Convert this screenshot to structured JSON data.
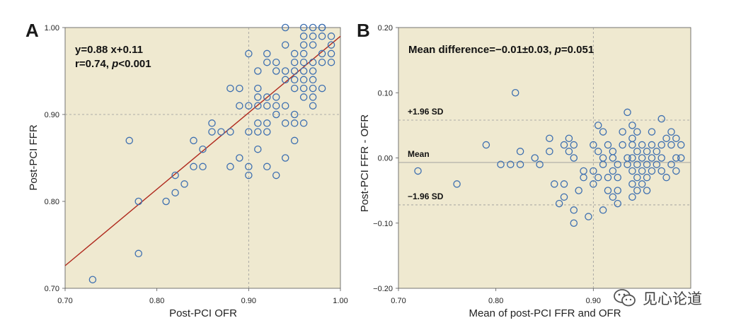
{
  "colors": {
    "plot_background": "#efe9d0",
    "marker_stroke": "#3d6fb0",
    "regression_line": "#b02a1e",
    "reference_line": "#999999"
  },
  "watermark": {
    "text": "见心论道",
    "icon": "wechat-icon"
  },
  "chart_data": [
    {
      "panel": "A",
      "type": "scatter",
      "title": "",
      "xlabel": "Post-PCI OFR",
      "ylabel": "Post-PCI FFR",
      "xlim": [
        0.7,
        1.0
      ],
      "ylim": [
        0.7,
        1.0
      ],
      "xticks": [
        0.7,
        0.8,
        0.9,
        1.0
      ],
      "yticks": [
        0.7,
        0.8,
        0.9,
        1.0
      ],
      "xtick_labels": [
        "0.70",
        "0.80",
        "0.90",
        "1.00"
      ],
      "ytick_labels": [
        "0.70",
        "0.80",
        "0.90",
        "1.00"
      ],
      "reference_lines": {
        "x": 0.9,
        "y": 0.9
      },
      "annotation": {
        "line1": "y=0.88 x+0.11",
        "line2_prefix": "r=0.74, ",
        "line2_italic": "p",
        "line2_suffix": "<0.001"
      },
      "regression": {
        "slope": 0.88,
        "intercept": 0.11
      },
      "points": [
        [
          0.73,
          0.71
        ],
        [
          0.77,
          0.87
        ],
        [
          0.78,
          0.8
        ],
        [
          0.78,
          0.74
        ],
        [
          0.81,
          0.8
        ],
        [
          0.82,
          0.83
        ],
        [
          0.82,
          0.81
        ],
        [
          0.83,
          0.82
        ],
        [
          0.84,
          0.87
        ],
        [
          0.84,
          0.84
        ],
        [
          0.85,
          0.86
        ],
        [
          0.85,
          0.84
        ],
        [
          0.86,
          0.89
        ],
        [
          0.86,
          0.88
        ],
        [
          0.87,
          0.88
        ],
        [
          0.88,
          0.93
        ],
        [
          0.88,
          0.88
        ],
        [
          0.88,
          0.84
        ],
        [
          0.89,
          0.93
        ],
        [
          0.89,
          0.91
        ],
        [
          0.89,
          0.85
        ],
        [
          0.9,
          0.97
        ],
        [
          0.9,
          0.91
        ],
        [
          0.9,
          0.88
        ],
        [
          0.9,
          0.84
        ],
        [
          0.9,
          0.83
        ],
        [
          0.91,
          0.95
        ],
        [
          0.91,
          0.93
        ],
        [
          0.91,
          0.92
        ],
        [
          0.91,
          0.91
        ],
        [
          0.91,
          0.89
        ],
        [
          0.91,
          0.88
        ],
        [
          0.91,
          0.86
        ],
        [
          0.92,
          0.97
        ],
        [
          0.92,
          0.96
        ],
        [
          0.92,
          0.92
        ],
        [
          0.92,
          0.91
        ],
        [
          0.92,
          0.89
        ],
        [
          0.92,
          0.88
        ],
        [
          0.92,
          0.84
        ],
        [
          0.93,
          0.96
        ],
        [
          0.93,
          0.95
        ],
        [
          0.93,
          0.92
        ],
        [
          0.93,
          0.91
        ],
        [
          0.93,
          0.9
        ],
        [
          0.93,
          0.83
        ],
        [
          0.94,
          1.0
        ],
        [
          0.94,
          0.98
        ],
        [
          0.94,
          0.95
        ],
        [
          0.94,
          0.94
        ],
        [
          0.94,
          0.91
        ],
        [
          0.94,
          0.89
        ],
        [
          0.94,
          0.85
        ],
        [
          0.95,
          0.97
        ],
        [
          0.95,
          0.96
        ],
        [
          0.95,
          0.95
        ],
        [
          0.95,
          0.94
        ],
        [
          0.95,
          0.93
        ],
        [
          0.95,
          0.9
        ],
        [
          0.95,
          0.89
        ],
        [
          0.95,
          0.87
        ],
        [
          0.96,
          0.96
        ],
        [
          0.96,
          0.95
        ],
        [
          0.96,
          0.94
        ],
        [
          0.96,
          0.93
        ],
        [
          0.96,
          0.92
        ],
        [
          0.96,
          0.89
        ],
        [
          0.97,
          1.0
        ],
        [
          0.97,
          0.99
        ],
        [
          0.97,
          0.98
        ],
        [
          0.97,
          0.96
        ],
        [
          0.97,
          0.95
        ],
        [
          0.97,
          0.94
        ],
        [
          0.97,
          0.93
        ],
        [
          0.97,
          0.92
        ],
        [
          0.97,
          0.91
        ],
        [
          0.98,
          1.0
        ],
        [
          0.98,
          0.99
        ],
        [
          0.98,
          0.97
        ],
        [
          0.98,
          0.96
        ],
        [
          0.98,
          0.93
        ],
        [
          0.99,
          0.99
        ],
        [
          0.99,
          0.98
        ],
        [
          0.99,
          0.97
        ],
        [
          0.99,
          0.96
        ],
        [
          0.96,
          1.0
        ],
        [
          0.96,
          0.99
        ],
        [
          0.96,
          0.98
        ],
        [
          0.96,
          0.97
        ],
        [
          0.98,
          1.0
        ]
      ]
    },
    {
      "panel": "B",
      "type": "scatter",
      "title": "",
      "xlabel": "Mean of post-PCI FFR and OFR",
      "ylabel": "Post-PCI FFR - OFR",
      "xlim": [
        0.7,
        1.0
      ],
      "ylim": [
        -0.2,
        0.2
      ],
      "xticks": [
        0.7,
        0.8,
        0.9
      ],
      "yticks": [
        0.2,
        0.1,
        0.0,
        -0.1,
        -0.2
      ],
      "xtick_labels": [
        "0.70",
        "0.80",
        "0.90"
      ],
      "ytick_labels": [
        "0.20",
        "0.10",
        "0.00",
        "−0.10",
        "−0.20"
      ],
      "annotation": {
        "prefix": "Mean difference=−0.01±0.03, ",
        "italic": "p",
        "suffix": "=0.051"
      },
      "mean_diff": -0.007,
      "upper_loa": 0.058,
      "lower_loa": -0.072,
      "line_labels": {
        "upper": "+1.96 SD",
        "mean": "Mean",
        "lower": "−1.96 SD"
      },
      "points": [
        [
          0.72,
          -0.02
        ],
        [
          0.76,
          -0.04
        ],
        [
          0.79,
          0.02
        ],
        [
          0.805,
          -0.01
        ],
        [
          0.815,
          -0.01
        ],
        [
          0.82,
          0.1
        ],
        [
          0.825,
          0.01
        ],
        [
          0.825,
          -0.01
        ],
        [
          0.84,
          0.0
        ],
        [
          0.845,
          -0.01
        ],
        [
          0.855,
          0.03
        ],
        [
          0.855,
          0.01
        ],
        [
          0.86,
          -0.04
        ],
        [
          0.865,
          -0.07
        ],
        [
          0.87,
          0.02
        ],
        [
          0.87,
          -0.04
        ],
        [
          0.87,
          -0.06
        ],
        [
          0.875,
          0.03
        ],
        [
          0.875,
          0.01
        ],
        [
          0.88,
          0.02
        ],
        [
          0.88,
          0.0
        ],
        [
          0.88,
          -0.08
        ],
        [
          0.88,
          -0.1
        ],
        [
          0.885,
          -0.05
        ],
        [
          0.89,
          -0.02
        ],
        [
          0.89,
          -0.03
        ],
        [
          0.895,
          -0.09
        ],
        [
          0.9,
          0.02
        ],
        [
          0.9,
          -0.02
        ],
        [
          0.9,
          -0.04
        ],
        [
          0.905,
          0.05
        ],
        [
          0.905,
          0.01
        ],
        [
          0.905,
          -0.03
        ],
        [
          0.91,
          0.04
        ],
        [
          0.91,
          0.0
        ],
        [
          0.91,
          -0.01
        ],
        [
          0.91,
          -0.08
        ],
        [
          0.915,
          0.02
        ],
        [
          0.915,
          -0.03
        ],
        [
          0.915,
          -0.05
        ],
        [
          0.92,
          0.01
        ],
        [
          0.92,
          0.0
        ],
        [
          0.92,
          -0.02
        ],
        [
          0.92,
          -0.06
        ],
        [
          0.925,
          -0.01
        ],
        [
          0.925,
          -0.03
        ],
        [
          0.925,
          -0.05
        ],
        [
          0.925,
          -0.07
        ],
        [
          0.93,
          0.04
        ],
        [
          0.93,
          0.02
        ],
        [
          0.935,
          0.07
        ],
        [
          0.935,
          0.0
        ],
        [
          0.935,
          -0.01
        ],
        [
          0.94,
          0.05
        ],
        [
          0.94,
          0.03
        ],
        [
          0.94,
          0.02
        ],
        [
          0.94,
          0.0
        ],
        [
          0.94,
          -0.02
        ],
        [
          0.94,
          -0.04
        ],
        [
          0.94,
          -0.06
        ],
        [
          0.945,
          0.04
        ],
        [
          0.945,
          0.01
        ],
        [
          0.945,
          -0.01
        ],
        [
          0.945,
          -0.03
        ],
        [
          0.945,
          -0.05
        ],
        [
          0.95,
          0.02
        ],
        [
          0.95,
          0.0
        ],
        [
          0.95,
          -0.02
        ],
        [
          0.95,
          -0.04
        ],
        [
          0.955,
          0.01
        ],
        [
          0.955,
          -0.01
        ],
        [
          0.955,
          -0.03
        ],
        [
          0.955,
          -0.05
        ],
        [
          0.96,
          0.04
        ],
        [
          0.96,
          0.02
        ],
        [
          0.96,
          0.0
        ],
        [
          0.96,
          -0.02
        ],
        [
          0.965,
          0.01
        ],
        [
          0.965,
          -0.01
        ],
        [
          0.97,
          0.06
        ],
        [
          0.97,
          0.02
        ],
        [
          0.97,
          0.0
        ],
        [
          0.97,
          -0.02
        ],
        [
          0.975,
          0.03
        ],
        [
          0.975,
          -0.03
        ],
        [
          0.98,
          0.04
        ],
        [
          0.98,
          0.02
        ],
        [
          0.98,
          -0.01
        ],
        [
          0.985,
          0.03
        ],
        [
          0.985,
          0.0
        ],
        [
          0.985,
          -0.02
        ],
        [
          0.99,
          0.02
        ],
        [
          0.99,
          0.0
        ]
      ]
    }
  ]
}
